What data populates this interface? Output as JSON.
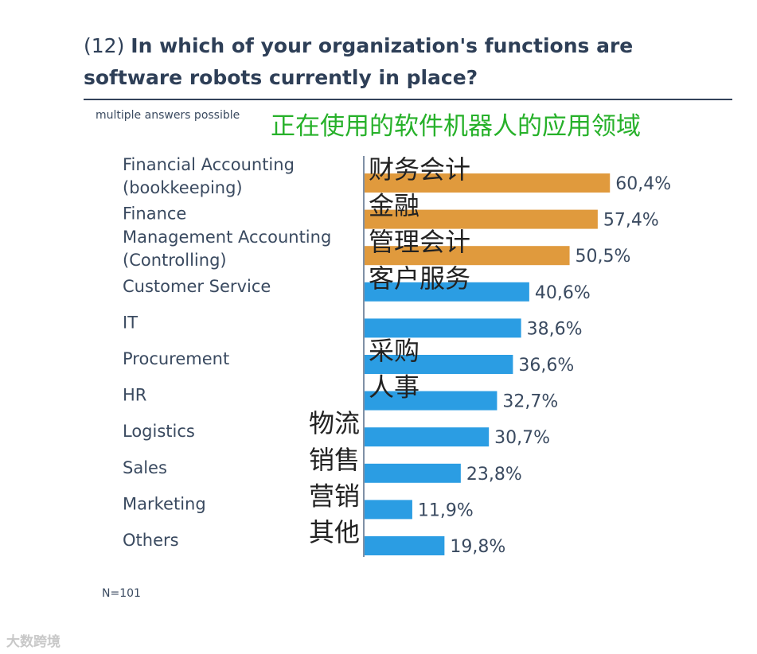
{
  "header": {
    "number": "(12)",
    "question_line1": "In which of your organization's functions are",
    "question_line2": "software robots currently in place?",
    "subtitle": "multiple answers possible",
    "cn_title": "正在使用的软件机器人的应用领域"
  },
  "footnote": "N=101",
  "watermark": "大数跨境",
  "colors": {
    "highlight": "#e09a3d",
    "base": "#2b9de3",
    "axis": "#7f90a6",
    "text": "#3a4a60"
  },
  "chart_data": {
    "type": "bar",
    "orientation": "horizontal",
    "xlim": [
      0,
      100
    ],
    "categories": [
      {
        "label": [
          "Financial Accounting",
          "(bookkeeping)"
        ],
        "cn": "财务会计",
        "value": 60.4,
        "value_label": "60,4%",
        "highlight": true
      },
      {
        "label": [
          "Finance"
        ],
        "cn": "金融",
        "value": 57.4,
        "value_label": "57,4%",
        "highlight": true
      },
      {
        "label": [
          "Management Accounting",
          "(Controlling)"
        ],
        "cn": "管理会计",
        "value": 50.5,
        "value_label": "50,5%",
        "highlight": true
      },
      {
        "label": [
          "Customer Service"
        ],
        "cn": "客户服务",
        "value": 40.6,
        "value_label": "40,6%",
        "highlight": false
      },
      {
        "label": [
          "IT"
        ],
        "cn": "",
        "value": 38.6,
        "value_label": "38,6%",
        "highlight": false
      },
      {
        "label": [
          "Procurement"
        ],
        "cn": "采购",
        "value": 36.6,
        "value_label": "36,6%",
        "highlight": false
      },
      {
        "label": [
          "HR"
        ],
        "cn": "人事",
        "value": 32.7,
        "value_label": "32,7%",
        "highlight": false
      },
      {
        "label": [
          "Logistics"
        ],
        "cn": "物流",
        "value": 30.7,
        "value_label": "30,7%",
        "highlight": false
      },
      {
        "label": [
          "Sales"
        ],
        "cn": "销售",
        "value": 23.8,
        "value_label": "23,8%",
        "highlight": false
      },
      {
        "label": [
          "Marketing"
        ],
        "cn": "营销",
        "value": 11.9,
        "value_label": "11,9%",
        "highlight": false
      },
      {
        "label": [
          "Others"
        ],
        "cn": "其他",
        "value": 19.8,
        "value_label": "19,8%",
        "highlight": false
      }
    ]
  }
}
